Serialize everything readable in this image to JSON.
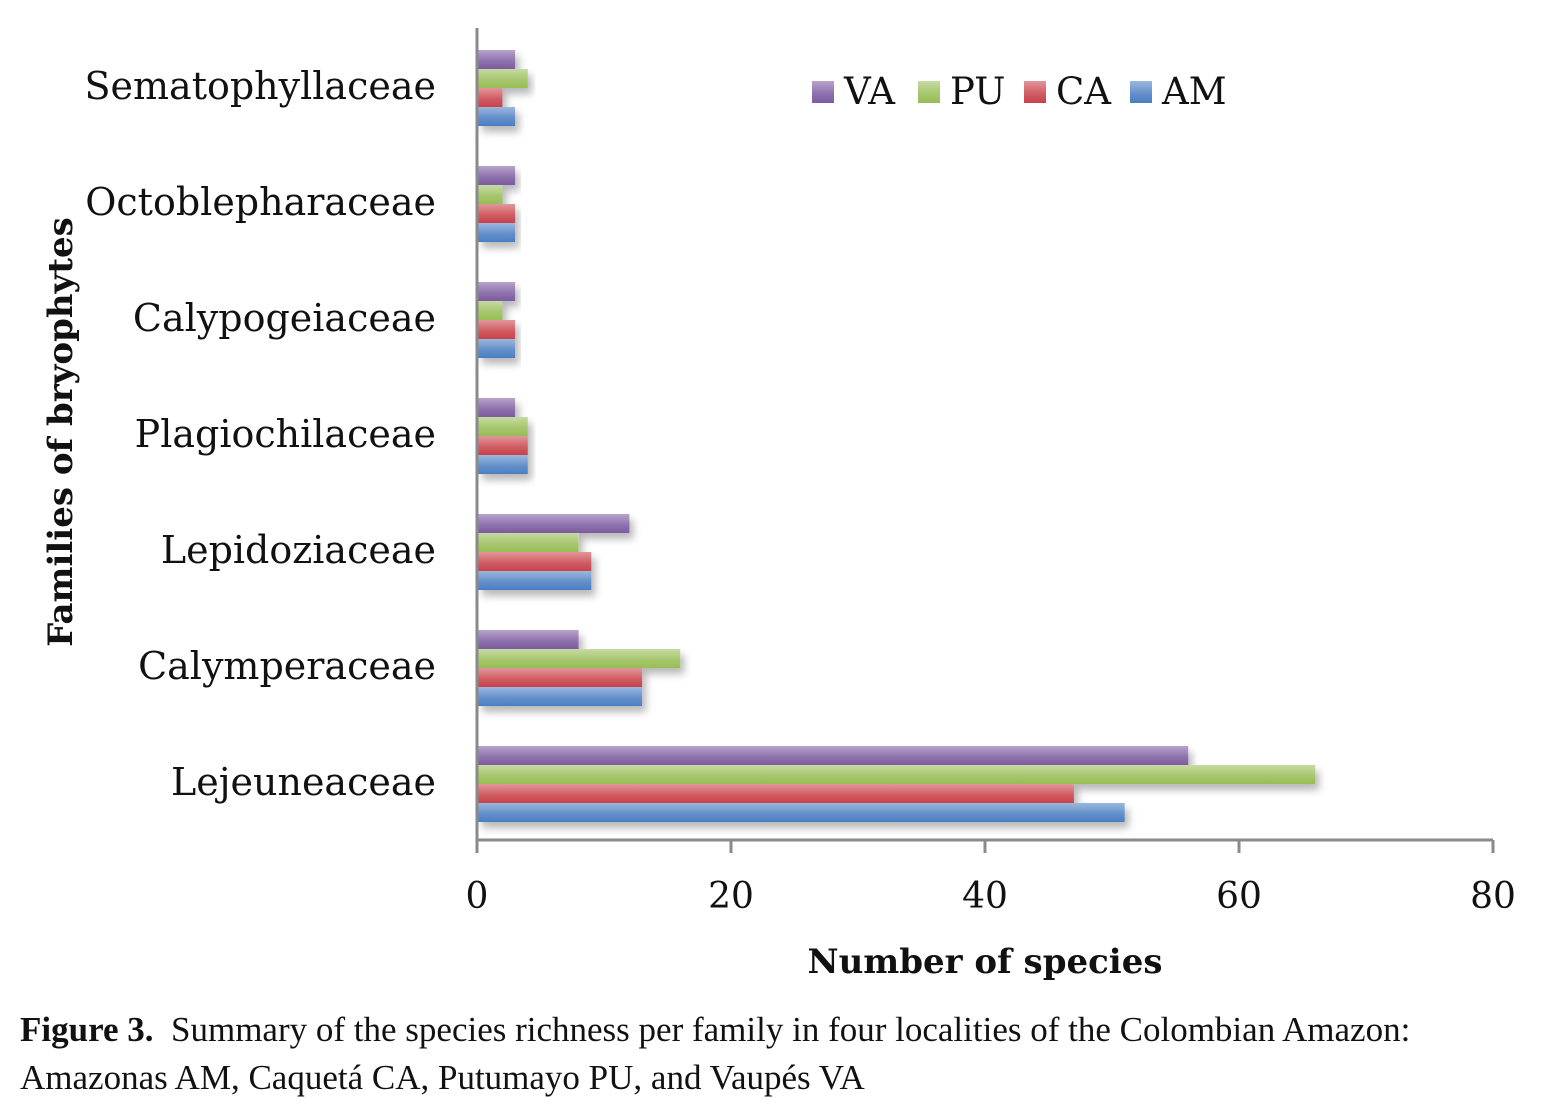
{
  "chart_data": {
    "type": "bar",
    "orientation": "horizontal",
    "categories": [
      "Lejeuneaceae",
      "Calymperaceae",
      "Lepidoziaceae",
      "Plagiochilaceae",
      "Calypogeiaceae",
      "Octoblepharaceae",
      "Sematophyllaceae"
    ],
    "series": [
      {
        "name": "AM",
        "color": "#4a7ec2",
        "values": [
          51,
          13,
          9,
          4,
          3,
          3,
          3
        ]
      },
      {
        "name": "CA",
        "color": "#c9414a",
        "values": [
          47,
          13,
          9,
          4,
          3,
          3,
          2
        ]
      },
      {
        "name": "PU",
        "color": "#97bd55",
        "values": [
          66,
          16,
          8,
          4,
          2,
          2,
          4
        ]
      },
      {
        "name": "VA",
        "color": "#7c5aa0",
        "values": [
          56,
          8,
          12,
          3,
          3,
          3,
          3
        ]
      }
    ],
    "legend_order": [
      "VA",
      "PU",
      "CA",
      "AM"
    ],
    "legend_position": "top-right",
    "xlabel": "Number of species",
    "ylabel": "Families of bryophytes",
    "xlim": [
      0,
      80
    ],
    "xticks": [
      0,
      20,
      40,
      60,
      80
    ],
    "xtick_labels": [
      "0",
      "20",
      "40",
      "60",
      "80"
    ],
    "grid": false
  },
  "caption": {
    "label": "Figure 3.",
    "text": "Summary of the species richness per family in four localities of the Colombian Amazon: Amazonas AM, Caquetá CA, Putumayo PU, and Vaupés VA"
  }
}
